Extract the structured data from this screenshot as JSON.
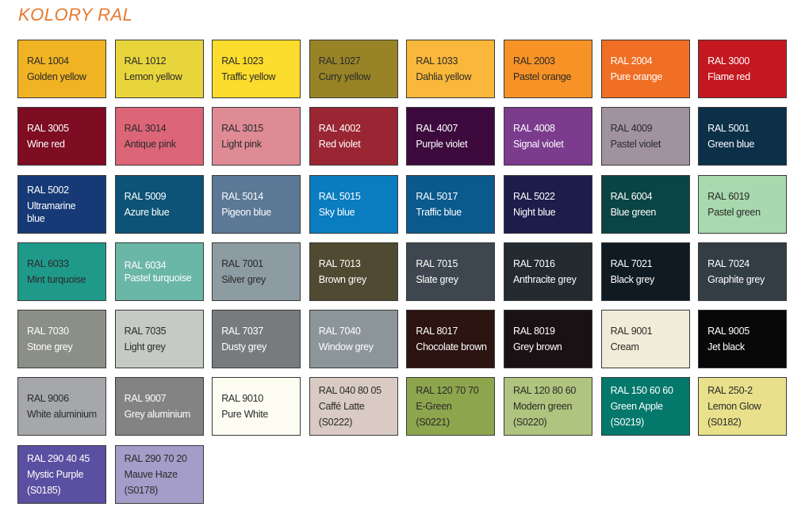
{
  "title": "KOLORY RAL",
  "swatches": [
    {
      "code": "RAL 1004",
      "name": "Golden yellow",
      "color": "#f0b323",
      "text": "#2a2a2a"
    },
    {
      "code": "RAL 1012",
      "name": "Lemon yellow",
      "color": "#e8d53c",
      "text": "#2a2a2a"
    },
    {
      "code": "RAL 1023",
      "name": "Traffic yellow",
      "color": "#fcdc2c",
      "text": "#2a2a2a"
    },
    {
      "code": "RAL 1027",
      "name": "Curry yellow",
      "color": "#988427",
      "text": "#2a2a2a"
    },
    {
      "code": "RAL 1033",
      "name": "Dahlia yellow",
      "color": "#fab83a",
      "text": "#2a2a2a"
    },
    {
      "code": "RAL 2003",
      "name": "Pastel orange",
      "color": "#f79226",
      "text": "#2a2a2a"
    },
    {
      "code": "RAL 2004",
      "name": "Pure orange",
      "color": "#f06f25",
      "text": "#ffffff"
    },
    {
      "code": "RAL 3000",
      "name": "Flame red",
      "color": "#c41820",
      "text": "#ffffff"
    },
    {
      "code": "RAL 3005",
      "name": "Wine red",
      "color": "#7e0c22",
      "text": "#ffffff"
    },
    {
      "code": "RAL 3014",
      "name": "Antique pink",
      "color": "#dc6577",
      "text": "#2a2a2a"
    },
    {
      "code": "RAL 3015",
      "name": "Light pink",
      "color": "#df8b95",
      "text": "#2a2a2a"
    },
    {
      "code": "RAL 4002",
      "name": "Red violet",
      "color": "#9b2633",
      "text": "#ffffff"
    },
    {
      "code": "RAL 4007",
      "name": "Purple violet",
      "color": "#3d0a3e",
      "text": "#ffffff"
    },
    {
      "code": "RAL 4008",
      "name": "Signal violet",
      "color": "#7b3c8e",
      "text": "#ffffff"
    },
    {
      "code": "RAL 4009",
      "name": "Pastel violet",
      "color": "#a0939f",
      "text": "#2a2a2a"
    },
    {
      "code": "RAL 5001",
      "name": "Green blue",
      "color": "#0d3049",
      "text": "#ffffff"
    },
    {
      "code": "RAL 5002",
      "name": "Ultramarine blue",
      "color": "#173a77",
      "text": "#ffffff"
    },
    {
      "code": "RAL 5009",
      "name": "Azure blue",
      "color": "#0c5377",
      "text": "#ffffff"
    },
    {
      "code": "RAL 5014",
      "name": "Pigeon blue",
      "color": "#5b7896",
      "text": "#ffffff"
    },
    {
      "code": "RAL 5015",
      "name": "Sky blue",
      "color": "#0a7cc0",
      "text": "#ffffff"
    },
    {
      "code": "RAL 5017",
      "name": "Traffic blue",
      "color": "#0a5a8e",
      "text": "#ffffff"
    },
    {
      "code": "RAL 5022",
      "name": "Night blue",
      "color": "#1d1c4a",
      "text": "#ffffff"
    },
    {
      "code": "RAL 6004",
      "name": "Blue green",
      "color": "#0b4444",
      "text": "#ffffff"
    },
    {
      "code": "RAL 6019",
      "name": "Pastel green",
      "color": "#a8d8ad",
      "text": "#2a2a2a"
    },
    {
      "code": "RAL 6033",
      "name": "Mint turquoise",
      "color": "#1f9a8a",
      "text": "#2a2a2a"
    },
    {
      "code": "RAL 6034",
      "name": "Pastel turquoise",
      "color": "#6ab6a7",
      "text": "#ffffff"
    },
    {
      "code": "RAL 7001",
      "name": "Silver grey",
      "color": "#8d9ba2",
      "text": "#2a2a2a"
    },
    {
      "code": "RAL 7013",
      "name": "Brown grey",
      "color": "#504a32",
      "text": "#ffffff"
    },
    {
      "code": "RAL 7015",
      "name": "Slate grey",
      "color": "#3e4750",
      "text": "#ffffff"
    },
    {
      "code": "RAL 7016",
      "name": "Anthracite grey",
      "color": "#232b31",
      "text": "#ffffff"
    },
    {
      "code": "RAL 7021",
      "name": "Black grey",
      "color": "#0f1a22",
      "text": "#ffffff"
    },
    {
      "code": "RAL 7024",
      "name": "Graphite grey",
      "color": "#333d44",
      "text": "#ffffff"
    },
    {
      "code": "RAL 7030",
      "name": "Stone grey",
      "color": "#8b8f85",
      "text": "#ffffff"
    },
    {
      "code": "RAL 7035",
      "name": "Light grey",
      "color": "#c5cac5",
      "text": "#2a2a2a"
    },
    {
      "code": "RAL 7037",
      "name": "Dusty grey",
      "color": "#787b7e",
      "text": "#ffffff"
    },
    {
      "code": "RAL 7040",
      "name": "Window grey",
      "color": "#8c9599",
      "text": "#ffffff"
    },
    {
      "code": "RAL 8017",
      "name": "Chocolate brown",
      "color": "#2c1410",
      "text": "#ffffff"
    },
    {
      "code": "RAL 8019",
      "name": "Grey brown",
      "color": "#1a1115",
      "text": "#ffffff"
    },
    {
      "code": "RAL 9001",
      "name": "Cream",
      "color": "#f0ecd8",
      "text": "#2a2a2a"
    },
    {
      "code": "RAL 9005",
      "name": "Jet black",
      "color": "#080808",
      "text": "#ffffff"
    },
    {
      "code": "RAL 9006",
      "name": "White aluminium",
      "color": "#a5a7aa",
      "text": "#2a2a2a"
    },
    {
      "code": "RAL 9007",
      "name": "Grey aluminium",
      "color": "#838383",
      "text": "#ffffff"
    },
    {
      "code": "RAL 9010",
      "name": "Pure White",
      "color": "#fdfdf2",
      "text": "#2a2a2a"
    },
    {
      "code": "RAL 040 80 05",
      "name": "Caffé Latte",
      "ref": "(S0222)",
      "color": "#d9cbc4",
      "text": "#2a2a2a"
    },
    {
      "code": "RAL 120 70 70",
      "name": "E-Green",
      "ref": "(S0221)",
      "color": "#8da54d",
      "text": "#2a2a2a"
    },
    {
      "code": "RAL 120 80 60",
      "name": "Modern green",
      "ref": "(S0220)",
      "color": "#afc47e",
      "text": "#2a2a2a"
    },
    {
      "code": "RAL 150 60 60",
      "name": "Green Apple",
      "ref": "(S0219)",
      "color": "#03786b",
      "text": "#ffffff"
    },
    {
      "code": "RAL 250-2",
      "name": "Lemon Glow",
      "ref": "(S0182)",
      "color": "#e8e08a",
      "text": "#2a2a2a"
    },
    {
      "code": "RAL 290 40 45",
      "name": "Mystic Purple",
      "ref": "(S0185)",
      "color": "#5a4fa0",
      "text": "#ffffff"
    },
    {
      "code": "RAL 290 70 20",
      "name": "Mauve Haze",
      "ref": "(S0178)",
      "color": "#a49dc9",
      "text": "#2a2a2a"
    }
  ]
}
